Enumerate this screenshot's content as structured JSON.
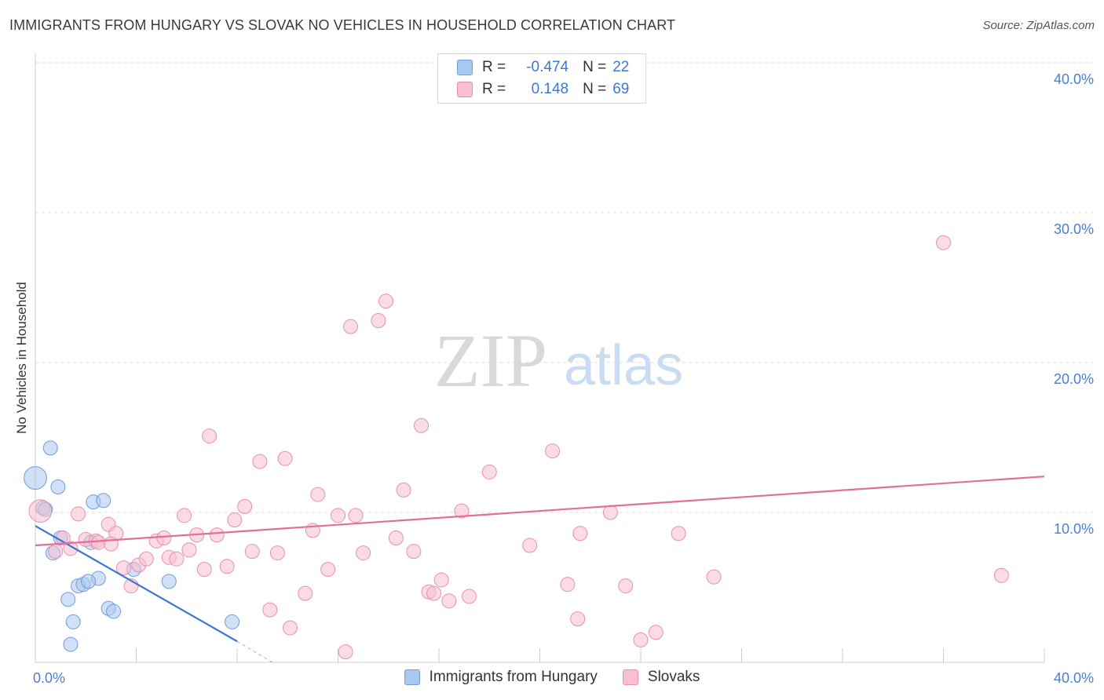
{
  "title": "IMMIGRANTS FROM HUNGARY VS SLOVAK NO VEHICLES IN HOUSEHOLD CORRELATION CHART",
  "source": "Source: ZipAtlas.com",
  "watermark": {
    "zip": "ZIP",
    "atlas": "atlas"
  },
  "legend": {
    "rows": [
      {
        "r_label": "R =",
        "r_value": "-0.474",
        "n_label": "N =",
        "n_value": "22",
        "color": "#a9c7ef",
        "border": "#6f9ddb"
      },
      {
        "r_label": "R =",
        "r_value": "0.148",
        "n_label": "N =",
        "n_value": "69",
        "color": "#f7bfd0",
        "border": "#e98fae"
      }
    ]
  },
  "chart_data": {
    "type": "scatter",
    "title": "IMMIGRANTS FROM HUNGARY VS SLOVAK NO VEHICLES IN HOUSEHOLD CORRELATION CHART",
    "xlabel": "",
    "ylabel": "No Vehicles in Household",
    "xlim": [
      0,
      40
    ],
    "ylim": [
      0,
      40
    ],
    "x_tick_labels": [
      {
        "value": 0,
        "label": "0.0%"
      },
      {
        "value": 40,
        "label": "40.0%"
      }
    ],
    "y_tick_labels": [
      {
        "value": 10,
        "label": "10.0%"
      },
      {
        "value": 20,
        "label": "20.0%"
      },
      {
        "value": 30,
        "label": "30.0%"
      },
      {
        "value": 40,
        "label": "40.0%"
      }
    ],
    "grid": true,
    "series": [
      {
        "name": "Immigrants from Hungary",
        "color": "#a9c7ef",
        "stroke": "#6f9ddb",
        "line_color": "#3a78d0",
        "trend": {
          "x0": 0.0,
          "y0": 9.1,
          "x1": 8.0,
          "y1": 1.4,
          "dash_to_x": 9.4,
          "dash_to_y": 0.0
        },
        "points": [
          [
            0.0,
            12.3,
            1.6
          ],
          [
            0.3,
            10.3,
            1.0
          ],
          [
            0.6,
            14.3,
            1.0
          ],
          [
            0.9,
            11.7,
            1.0
          ],
          [
            1.0,
            8.3,
            1.0
          ],
          [
            0.7,
            7.3,
            1.0
          ],
          [
            2.3,
            10.7,
            1.0
          ],
          [
            2.7,
            10.8,
            1.0
          ],
          [
            2.2,
            8.0,
            1.0
          ],
          [
            2.5,
            5.6,
            1.0
          ],
          [
            1.7,
            5.1,
            1.0
          ],
          [
            1.9,
            5.2,
            1.0
          ],
          [
            2.1,
            5.4,
            1.0
          ],
          [
            1.3,
            4.2,
            1.0
          ],
          [
            3.9,
            6.2,
            1.0
          ],
          [
            5.3,
            5.4,
            1.0
          ],
          [
            2.9,
            3.6,
            1.0
          ],
          [
            3.1,
            3.4,
            1.0
          ],
          [
            1.5,
            2.7,
            1.0
          ],
          [
            7.8,
            2.7,
            1.0
          ],
          [
            1.4,
            1.2,
            1.0
          ],
          [
            0.4,
            10.2,
            1.0
          ]
        ]
      },
      {
        "name": "Slovaks",
        "color": "#f7bfd0",
        "stroke": "#e98fae",
        "line_color": "#e36f98",
        "trend": {
          "x0": 0.0,
          "y0": 7.8,
          "x1": 40.0,
          "y1": 12.4
        },
        "points": [
          [
            0.2,
            10.1,
            1.6
          ],
          [
            0.8,
            7.4,
            1.0
          ],
          [
            1.4,
            7.6,
            1.0
          ],
          [
            1.1,
            8.3,
            1.0
          ],
          [
            1.7,
            9.9,
            1.0
          ],
          [
            2.0,
            8.2,
            1.0
          ],
          [
            2.4,
            8.1,
            1.0
          ],
          [
            2.5,
            8.0,
            1.0
          ],
          [
            2.9,
            9.2,
            1.0
          ],
          [
            3.2,
            8.6,
            1.0
          ],
          [
            3.5,
            6.3,
            1.0
          ],
          [
            3.8,
            5.1,
            1.0
          ],
          [
            4.1,
            6.5,
            1.0
          ],
          [
            4.4,
            6.9,
            1.0
          ],
          [
            4.8,
            8.1,
            1.0
          ],
          [
            5.1,
            8.3,
            1.0
          ],
          [
            5.3,
            7.0,
            1.0
          ],
          [
            5.6,
            6.9,
            1.0
          ],
          [
            5.9,
            9.8,
            1.0
          ],
          [
            6.1,
            7.5,
            1.0
          ],
          [
            6.4,
            8.5,
            1.0
          ],
          [
            6.7,
            6.2,
            1.0
          ],
          [
            7.2,
            8.5,
            1.0
          ],
          [
            7.6,
            6.4,
            1.0
          ],
          [
            7.9,
            9.5,
            1.0
          ],
          [
            8.3,
            10.4,
            1.0
          ],
          [
            8.6,
            7.4,
            1.0
          ],
          [
            8.9,
            13.4,
            1.0
          ],
          [
            9.3,
            3.5,
            1.0
          ],
          [
            9.6,
            7.3,
            1.0
          ],
          [
            9.9,
            13.6,
            1.0
          ],
          [
            10.1,
            2.3,
            1.0
          ],
          [
            10.7,
            4.6,
            1.0
          ],
          [
            11.0,
            8.8,
            1.0
          ],
          [
            11.2,
            11.2,
            1.0
          ],
          [
            11.6,
            6.2,
            1.0
          ],
          [
            12.0,
            9.8,
            1.0
          ],
          [
            12.3,
            0.7,
            1.0
          ],
          [
            12.5,
            22.4,
            1.0
          ],
          [
            12.7,
            9.8,
            1.0
          ],
          [
            13.0,
            7.3,
            1.0
          ],
          [
            13.6,
            22.8,
            1.0
          ],
          [
            13.9,
            24.1,
            1.0
          ],
          [
            14.3,
            8.3,
            1.0
          ],
          [
            14.6,
            11.5,
            1.0
          ],
          [
            15.0,
            7.4,
            1.0
          ],
          [
            15.3,
            15.8,
            1.0
          ],
          [
            15.6,
            4.7,
            1.0
          ],
          [
            15.8,
            4.6,
            1.0
          ],
          [
            16.1,
            5.5,
            1.0
          ],
          [
            16.4,
            4.1,
            1.0
          ],
          [
            16.9,
            10.1,
            1.0
          ],
          [
            17.2,
            4.4,
            1.0
          ],
          [
            18.0,
            12.7,
            1.0
          ],
          [
            19.6,
            7.8,
            1.0
          ],
          [
            20.5,
            14.1,
            1.0
          ],
          [
            21.1,
            5.2,
            1.0
          ],
          [
            21.5,
            2.9,
            1.0
          ],
          [
            21.6,
            8.6,
            1.0
          ],
          [
            23.4,
            5.1,
            1.0
          ],
          [
            24.0,
            1.5,
            1.0
          ],
          [
            24.6,
            2.0,
            1.0
          ],
          [
            25.5,
            8.6,
            1.0
          ],
          [
            26.9,
            5.7,
            1.0
          ],
          [
            36.0,
            28.0,
            1.0
          ],
          [
            38.3,
            5.8,
            1.0
          ],
          [
            22.8,
            10.0,
            1.0
          ],
          [
            6.9,
            15.1,
            1.0
          ],
          [
            3.0,
            7.9,
            1.0
          ]
        ]
      }
    ]
  }
}
